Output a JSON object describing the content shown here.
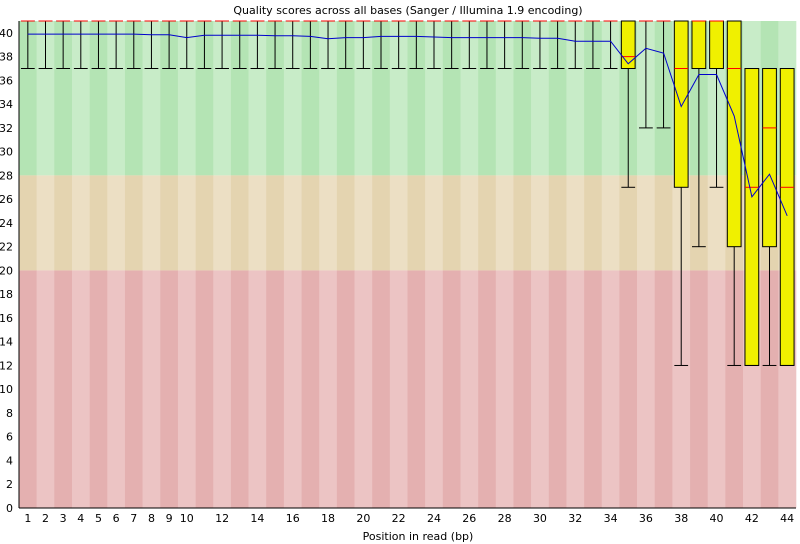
{
  "chart_data": {
    "type": "boxplot",
    "title": "Quality scores across all bases (Sanger / Illumina 1.9 encoding)",
    "xlabel": "Position in read (bp)",
    "ylabel": "",
    "ylim": [
      0,
      41
    ],
    "y_ticks": [
      0,
      2,
      4,
      6,
      8,
      10,
      12,
      14,
      16,
      18,
      20,
      22,
      24,
      26,
      28,
      30,
      32,
      34,
      36,
      38,
      40
    ],
    "x_tick_labels": [
      1,
      2,
      3,
      4,
      5,
      6,
      7,
      8,
      9,
      10,
      12,
      14,
      16,
      18,
      20,
      22,
      24,
      26,
      28,
      30,
      32,
      34,
      36,
      38,
      40,
      42,
      44
    ],
    "quality_bands": [
      {
        "from": 28,
        "to": 41,
        "color_a": "#b4e4b4",
        "color_b": "#c8ecc8"
      },
      {
        "from": 20,
        "to": 28,
        "color_a": "#e4d4b0",
        "color_b": "#ecdfc4"
      },
      {
        "from": 0,
        "to": 20,
        "color_a": "#e4b0b0",
        "color_b": "#ecc4c4"
      }
    ],
    "colors": {
      "box": "#f0f000",
      "median": "#ff0000",
      "mean_line": "#0000cc",
      "whisker": "#000000"
    },
    "positions": [
      {
        "x": 1,
        "whisker_low": 37,
        "q1": 41,
        "median": 41,
        "q3": 41,
        "whisker_high": 41,
        "mean": 39.9
      },
      {
        "x": 2,
        "whisker_low": 37,
        "q1": 41,
        "median": 41,
        "q3": 41,
        "whisker_high": 41,
        "mean": 39.9
      },
      {
        "x": 3,
        "whisker_low": 37,
        "q1": 41,
        "median": 41,
        "q3": 41,
        "whisker_high": 41,
        "mean": 39.9
      },
      {
        "x": 4,
        "whisker_low": 37,
        "q1": 41,
        "median": 41,
        "q3": 41,
        "whisker_high": 41,
        "mean": 39.9
      },
      {
        "x": 5,
        "whisker_low": 37,
        "q1": 41,
        "median": 41,
        "q3": 41,
        "whisker_high": 41,
        "mean": 39.9
      },
      {
        "x": 6,
        "whisker_low": 37,
        "q1": 41,
        "median": 41,
        "q3": 41,
        "whisker_high": 41,
        "mean": 39.9
      },
      {
        "x": 7,
        "whisker_low": 37,
        "q1": 41,
        "median": 41,
        "q3": 41,
        "whisker_high": 41,
        "mean": 39.9
      },
      {
        "x": 8,
        "whisker_low": 37,
        "q1": 41,
        "median": 41,
        "q3": 41,
        "whisker_high": 41,
        "mean": 39.85
      },
      {
        "x": 9,
        "whisker_low": 37,
        "q1": 41,
        "median": 41,
        "q3": 41,
        "whisker_high": 41,
        "mean": 39.85
      },
      {
        "x": 10,
        "whisker_low": 37,
        "q1": 41,
        "median": 41,
        "q3": 41,
        "whisker_high": 41,
        "mean": 39.6
      },
      {
        "x": 11,
        "whisker_low": 37,
        "q1": 41,
        "median": 41,
        "q3": 41,
        "whisker_high": 41,
        "mean": 39.8
      },
      {
        "x": 12,
        "whisker_low": 37,
        "q1": 41,
        "median": 41,
        "q3": 41,
        "whisker_high": 41,
        "mean": 39.8
      },
      {
        "x": 13,
        "whisker_low": 37,
        "q1": 41,
        "median": 41,
        "q3": 41,
        "whisker_high": 41,
        "mean": 39.8
      },
      {
        "x": 14,
        "whisker_low": 37,
        "q1": 41,
        "median": 41,
        "q3": 41,
        "whisker_high": 41,
        "mean": 39.8
      },
      {
        "x": 15,
        "whisker_low": 37,
        "q1": 41,
        "median": 41,
        "q3": 41,
        "whisker_high": 41,
        "mean": 39.75
      },
      {
        "x": 16,
        "whisker_low": 37,
        "q1": 41,
        "median": 41,
        "q3": 41,
        "whisker_high": 41,
        "mean": 39.75
      },
      {
        "x": 17,
        "whisker_low": 37,
        "q1": 41,
        "median": 41,
        "q3": 41,
        "whisker_high": 41,
        "mean": 39.7
      },
      {
        "x": 18,
        "whisker_low": 37,
        "q1": 41,
        "median": 41,
        "q3": 41,
        "whisker_high": 41,
        "mean": 39.5
      },
      {
        "x": 19,
        "whisker_low": 37,
        "q1": 41,
        "median": 41,
        "q3": 41,
        "whisker_high": 41,
        "mean": 39.6
      },
      {
        "x": 20,
        "whisker_low": 37,
        "q1": 41,
        "median": 41,
        "q3": 41,
        "whisker_high": 41,
        "mean": 39.6
      },
      {
        "x": 21,
        "whisker_low": 37,
        "q1": 41,
        "median": 41,
        "q3": 41,
        "whisker_high": 41,
        "mean": 39.7
      },
      {
        "x": 22,
        "whisker_low": 37,
        "q1": 41,
        "median": 41,
        "q3": 41,
        "whisker_high": 41,
        "mean": 39.7
      },
      {
        "x": 23,
        "whisker_low": 37,
        "q1": 41,
        "median": 41,
        "q3": 41,
        "whisker_high": 41,
        "mean": 39.7
      },
      {
        "x": 24,
        "whisker_low": 37,
        "q1": 41,
        "median": 41,
        "q3": 41,
        "whisker_high": 41,
        "mean": 39.65
      },
      {
        "x": 25,
        "whisker_low": 37,
        "q1": 41,
        "median": 41,
        "q3": 41,
        "whisker_high": 41,
        "mean": 39.6
      },
      {
        "x": 26,
        "whisker_low": 37,
        "q1": 41,
        "median": 41,
        "q3": 41,
        "whisker_high": 41,
        "mean": 39.6
      },
      {
        "x": 27,
        "whisker_low": 37,
        "q1": 41,
        "median": 41,
        "q3": 41,
        "whisker_high": 41,
        "mean": 39.6
      },
      {
        "x": 28,
        "whisker_low": 37,
        "q1": 41,
        "median": 41,
        "q3": 41,
        "whisker_high": 41,
        "mean": 39.6
      },
      {
        "x": 29,
        "whisker_low": 37,
        "q1": 41,
        "median": 41,
        "q3": 41,
        "whisker_high": 41,
        "mean": 39.6
      },
      {
        "x": 30,
        "whisker_low": 37,
        "q1": 41,
        "median": 41,
        "q3": 41,
        "whisker_high": 41,
        "mean": 39.55
      },
      {
        "x": 31,
        "whisker_low": 37,
        "q1": 41,
        "median": 41,
        "q3": 41,
        "whisker_high": 41,
        "mean": 39.55
      },
      {
        "x": 32,
        "whisker_low": 37,
        "q1": 41,
        "median": 41,
        "q3": 41,
        "whisker_high": 41,
        "mean": 39.3
      },
      {
        "x": 33,
        "whisker_low": 37,
        "q1": 41,
        "median": 41,
        "q3": 41,
        "whisker_high": 41,
        "mean": 39.3
      },
      {
        "x": 34,
        "whisker_low": 37,
        "q1": 41,
        "median": 41,
        "q3": 41,
        "whisker_high": 41,
        "mean": 39.3
      },
      {
        "x": 35,
        "whisker_low": 27,
        "q1": 37,
        "median": 38,
        "q3": 41,
        "whisker_high": 41,
        "mean": 37.4
      },
      {
        "x": 36,
        "whisker_low": 32,
        "q1": 41,
        "median": 41,
        "q3": 41,
        "whisker_high": 41,
        "mean": 38.7
      },
      {
        "x": 37,
        "whisker_low": 32,
        "q1": 41,
        "median": 41,
        "q3": 41,
        "whisker_high": 41,
        "mean": 38.3
      },
      {
        "x": 38,
        "whisker_low": 12,
        "q1": 27,
        "median": 37,
        "q3": 41,
        "whisker_high": 41,
        "mean": 33.8
      },
      {
        "x": 39,
        "whisker_low": 22,
        "q1": 37,
        "median": 41,
        "q3": 41,
        "whisker_high": 41,
        "mean": 36.5
      },
      {
        "x": 40,
        "whisker_low": 27,
        "q1": 37,
        "median": 41,
        "q3": 41,
        "whisker_high": 41,
        "mean": 36.5
      },
      {
        "x": 41,
        "whisker_low": 12,
        "q1": 22,
        "median": 37,
        "q3": 41,
        "whisker_high": 41,
        "mean": 33.0
      },
      {
        "x": 42,
        "whisker_low": 12,
        "q1": 12,
        "median": 27,
        "q3": 37,
        "whisker_high": 37,
        "mean": 26.2
      },
      {
        "x": 43,
        "whisker_low": 12,
        "q1": 22,
        "median": 32,
        "q3": 37,
        "whisker_high": 37,
        "mean": 28.1
      },
      {
        "x": 44,
        "whisker_low": 12,
        "q1": 12,
        "median": 27,
        "q3": 37,
        "whisker_high": 37,
        "mean": 24.6
      }
    ]
  }
}
